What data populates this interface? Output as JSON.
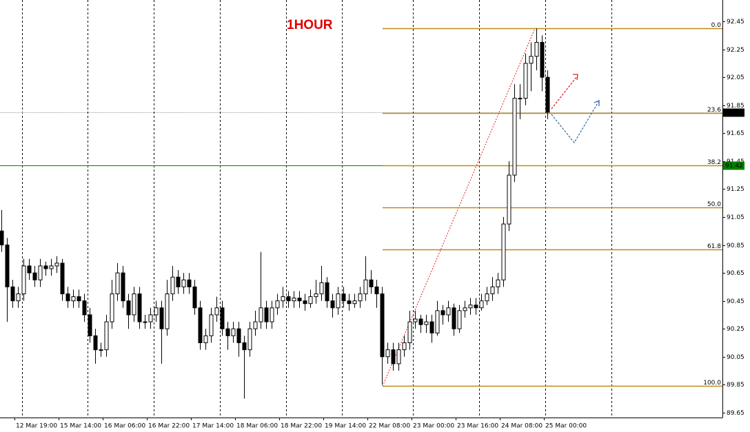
{
  "chart_data": {
    "type": "candlestick",
    "title": "1HOUR",
    "x_labels": [
      "12 Mar 19:00",
      "15 Mar 14:00",
      "16 Mar 06:00",
      "16 Mar 22:00",
      "17 Mar 14:00",
      "18 Mar 06:00",
      "18 Mar 22:00",
      "19 Mar 14:00",
      "22 Mar 08:00",
      "23 Mar 00:00",
      "23 Mar 16:00",
      "24 Mar 08:00",
      "25 Mar 00:00"
    ],
    "ylim": [
      89.615,
      92.603
    ],
    "yticks": [
      89.65,
      89.85,
      90.05,
      90.25,
      90.45,
      90.65,
      90.85,
      91.05,
      91.25,
      91.45,
      91.65,
      91.85,
      92.05,
      92.25,
      92.45
    ],
    "candles": {
      "open": [
        90.95,
        90.85,
        90.55,
        90.45,
        90.5,
        90.7,
        90.65,
        90.6,
        90.7,
        90.68,
        90.7,
        90.72,
        90.5,
        90.45,
        90.48,
        90.45,
        90.35,
        90.2,
        90.1,
        90.1,
        90.3,
        90.5,
        90.65,
        90.45,
        90.35,
        90.5,
        90.3,
        90.3,
        90.35,
        90.4,
        90.25,
        90.5,
        90.62,
        90.55,
        90.6,
        90.55,
        90.4,
        90.15,
        90.2,
        90.35,
        90.4,
        90.25,
        90.2,
        90.25,
        90.15,
        90.1,
        90.25,
        90.3,
        90.4,
        90.3,
        90.4,
        90.45,
        90.48,
        90.45,
        90.47,
        90.45,
        90.43,
        90.48,
        90.5,
        90.58,
        90.45,
        90.4,
        90.5,
        90.45,
        90.43,
        90.45,
        90.5,
        90.6,
        90.55,
        90.5,
        90.05,
        90.1,
        90.0,
        90.1,
        90.15,
        90.3,
        90.32,
        90.28,
        90.3,
        90.22,
        90.38,
        90.35,
        90.4,
        90.25,
        90.38,
        90.4,
        90.42,
        90.4,
        90.45,
        90.5,
        90.55,
        90.6,
        91.0,
        91.35,
        91.9,
        91.9,
        92.15,
        92.2,
        92.3,
        92.05
      ],
      "high": [
        91.1,
        90.9,
        90.6,
        90.55,
        90.75,
        90.75,
        90.7,
        90.75,
        90.73,
        90.75,
        90.77,
        90.75,
        90.55,
        90.53,
        90.53,
        90.5,
        90.4,
        90.25,
        90.15,
        90.35,
        90.6,
        90.72,
        90.7,
        90.5,
        90.55,
        90.55,
        90.35,
        90.4,
        90.45,
        90.45,
        90.6,
        90.7,
        90.67,
        90.65,
        90.65,
        90.6,
        90.45,
        90.25,
        90.4,
        90.48,
        90.45,
        90.3,
        90.3,
        90.3,
        90.2,
        90.3,
        90.38,
        90.8,
        90.45,
        90.45,
        90.5,
        90.55,
        90.52,
        90.52,
        90.52,
        90.5,
        90.53,
        90.6,
        90.7,
        90.62,
        90.5,
        90.55,
        90.55,
        90.5,
        90.5,
        90.55,
        90.77,
        90.67,
        90.6,
        90.55,
        90.15,
        90.15,
        90.15,
        90.2,
        90.38,
        90.38,
        90.35,
        90.35,
        90.35,
        90.45,
        90.42,
        90.45,
        90.43,
        90.42,
        90.45,
        90.47,
        90.47,
        90.5,
        90.55,
        90.62,
        90.65,
        91.05,
        91.45,
        92.0,
        92.0,
        92.22,
        92.3,
        92.4,
        92.35,
        92.1
      ],
      "low": [
        90.8,
        90.3,
        90.4,
        90.4,
        90.45,
        90.6,
        90.55,
        90.55,
        90.63,
        90.63,
        90.65,
        90.45,
        90.4,
        90.4,
        90.4,
        90.3,
        90.15,
        90.0,
        90.05,
        90.05,
        90.25,
        90.45,
        90.4,
        90.25,
        90.3,
        90.25,
        90.25,
        90.25,
        90.3,
        90.0,
        90.2,
        90.45,
        90.5,
        90.5,
        90.5,
        90.35,
        90.1,
        90.1,
        90.15,
        90.3,
        90.2,
        90.1,
        90.15,
        90.05,
        89.75,
        90.05,
        90.2,
        90.25,
        90.25,
        90.25,
        90.35,
        90.4,
        90.4,
        90.4,
        90.4,
        90.38,
        90.4,
        90.43,
        90.45,
        90.4,
        90.33,
        90.35,
        90.4,
        90.38,
        90.4,
        90.4,
        90.45,
        90.5,
        90.4,
        89.85,
        90.0,
        89.95,
        89.95,
        90.05,
        90.1,
        90.25,
        90.22,
        90.22,
        90.15,
        90.2,
        90.28,
        90.3,
        90.2,
        90.22,
        90.33,
        90.35,
        90.35,
        90.38,
        90.42,
        90.45,
        90.5,
        90.55,
        90.95,
        91.3,
        91.75,
        91.85,
        91.95,
        92.1,
        91.95,
        91.75
      ],
      "close": [
        90.85,
        90.55,
        90.45,
        90.5,
        90.7,
        90.65,
        90.6,
        90.7,
        90.68,
        90.7,
        90.72,
        90.5,
        90.45,
        90.48,
        90.45,
        90.35,
        90.2,
        90.1,
        90.1,
        90.3,
        90.5,
        90.65,
        90.45,
        90.35,
        90.5,
        90.3,
        90.3,
        90.35,
        90.4,
        90.25,
        90.5,
        90.62,
        90.55,
        90.6,
        90.55,
        90.4,
        90.15,
        90.2,
        90.35,
        90.4,
        90.25,
        90.2,
        90.25,
        90.15,
        90.1,
        90.25,
        90.3,
        90.4,
        90.3,
        90.4,
        90.45,
        90.48,
        90.45,
        90.47,
        90.45,
        90.43,
        90.48,
        90.5,
        90.58,
        90.45,
        90.4,
        90.5,
        90.45,
        90.43,
        90.45,
        90.5,
        90.6,
        90.55,
        90.5,
        90.05,
        90.1,
        90.0,
        90.1,
        90.15,
        90.3,
        90.32,
        90.28,
        90.3,
        90.22,
        90.38,
        90.35,
        90.4,
        90.25,
        90.38,
        90.4,
        90.42,
        90.4,
        90.45,
        90.5,
        90.55,
        90.6,
        91.0,
        91.35,
        91.9,
        91.9,
        92.15,
        92.2,
        92.3,
        92.05,
        91.8
      ]
    },
    "fibonacci": {
      "high": 92.4,
      "low": 89.84,
      "color": "#c08a10",
      "levels": [
        {
          "value": 0,
          "label": "0.0"
        },
        {
          "value": 23.6,
          "label": "23.6"
        },
        {
          "value": 38.2,
          "label": "38.2"
        },
        {
          "value": 50,
          "label": "50.0"
        },
        {
          "value": 61.8,
          "label": "61.8"
        },
        {
          "value": 100,
          "label": "100.0"
        }
      ]
    },
    "price_lines": [
      {
        "value": 91.8,
        "label": "91.80",
        "color": "#000000"
      },
      {
        "value": 91.42,
        "label": "91.42",
        "color": "#008000"
      }
    ]
  }
}
